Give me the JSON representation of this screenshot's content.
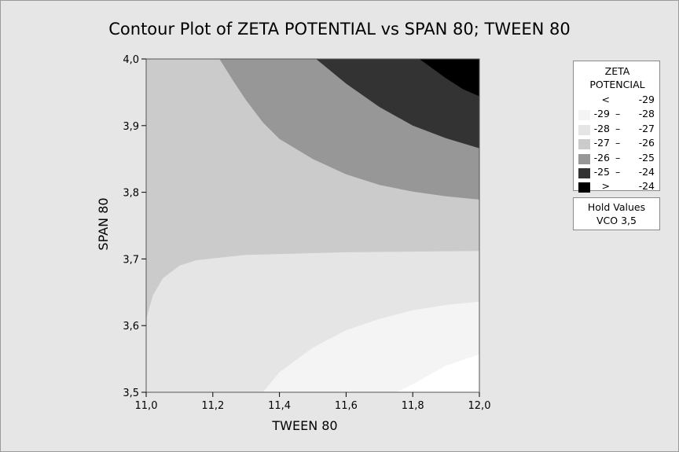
{
  "chart_data": {
    "type": "contour",
    "title": "Contour Plot of ZETA POTENTIAL vs SPAN 80; TWEEN 80",
    "xlabel": "TWEEN 80",
    "ylabel": "SPAN 80",
    "xlim": [
      11.0,
      12.0
    ],
    "ylim": [
      3.5,
      4.0
    ],
    "x_ticks": [
      "11,0",
      "11,2",
      "11,4",
      "11,6",
      "11,8",
      "12,0"
    ],
    "y_ticks": [
      "3,5",
      "3,6",
      "3,7",
      "3,8",
      "3,9",
      "4,0"
    ],
    "legend": {
      "title_lines": [
        "ZETA",
        "POTENCIAL"
      ],
      "levels": [
        {
          "lo": "<",
          "dash": "",
          "hi": "-29",
          "color": "#ffffff"
        },
        {
          "lo": "-29",
          "dash": "–",
          "hi": "-28",
          "color": "#f4f4f4"
        },
        {
          "lo": "-28",
          "dash": "–",
          "hi": "-27",
          "color": "#e5e5e5"
        },
        {
          "lo": "-27",
          "dash": "–",
          "hi": "-26",
          "color": "#cbcbcb"
        },
        {
          "lo": "-26",
          "dash": "–",
          "hi": "-25",
          "color": "#979797"
        },
        {
          "lo": "-25",
          "dash": "–",
          "hi": "-24",
          "color": "#333333"
        },
        {
          "lo": ">",
          "dash": "",
          "hi": "-24",
          "color": "#000000"
        }
      ]
    },
    "hold_values": {
      "title": "Hold Values",
      "text": "VCO  3,5"
    },
    "regions": [
      {
        "name": "-28 – -27",
        "color": "#e5e5e5",
        "boundary": [
          [
            11.0,
            3.5
          ],
          [
            12.0,
            3.5
          ],
          [
            12.0,
            4.0
          ],
          [
            11.0,
            4.0
          ]
        ]
      },
      {
        "name": "-27 – -26",
        "color": "#cbcbcb",
        "boundary": [
          [
            11.0,
            4.0
          ],
          [
            12.0,
            4.0
          ],
          [
            12.0,
            3.712
          ],
          [
            11.6,
            3.71
          ],
          [
            11.3,
            3.706
          ],
          [
            11.2,
            3.701
          ],
          [
            11.15,
            3.698
          ],
          [
            11.1,
            3.69
          ],
          [
            11.05,
            3.671
          ],
          [
            11.02,
            3.645
          ],
          [
            11.0,
            3.61
          ]
        ]
      },
      {
        "name": "-26 – -25",
        "color": "#979797",
        "boundary": [
          [
            11.22,
            4.0
          ],
          [
            12.0,
            4.0
          ],
          [
            12.0,
            3.789
          ],
          [
            11.9,
            3.794
          ],
          [
            11.8,
            3.801
          ],
          [
            11.7,
            3.811
          ],
          [
            11.6,
            3.827
          ],
          [
            11.5,
            3.85
          ],
          [
            11.4,
            3.88
          ],
          [
            11.35,
            3.905
          ],
          [
            11.3,
            3.938
          ],
          [
            11.26,
            3.968
          ]
        ]
      },
      {
        "name": "-25 – -24",
        "color": "#333333",
        "boundary": [
          [
            11.51,
            4.0
          ],
          [
            12.0,
            4.0
          ],
          [
            12.0,
            3.866
          ],
          [
            11.9,
            3.881
          ],
          [
            11.8,
            3.9
          ],
          [
            11.7,
            3.928
          ],
          [
            11.6,
            3.963
          ]
        ]
      },
      {
        "name": "> -24",
        "color": "#000000",
        "boundary": [
          [
            11.82,
            4.0
          ],
          [
            12.0,
            4.0
          ],
          [
            12.0,
            3.944
          ],
          [
            11.95,
            3.955
          ],
          [
            11.9,
            3.971
          ]
        ]
      },
      {
        "name": "-29 – -28",
        "color": "#f4f4f4",
        "boundary": [
          [
            11.35,
            3.5
          ],
          [
            12.0,
            3.5
          ],
          [
            12.0,
            3.636
          ],
          [
            11.9,
            3.631
          ],
          [
            11.8,
            3.623
          ],
          [
            11.7,
            3.61
          ],
          [
            11.6,
            3.593
          ],
          [
            11.5,
            3.567
          ],
          [
            11.4,
            3.53
          ]
        ]
      },
      {
        "name": "< -29",
        "color": "#ffffff",
        "boundary": [
          [
            11.75,
            3.5
          ],
          [
            12.0,
            3.5
          ],
          [
            12.0,
            3.557
          ],
          [
            11.9,
            3.54
          ],
          [
            11.8,
            3.512
          ]
        ]
      }
    ]
  }
}
